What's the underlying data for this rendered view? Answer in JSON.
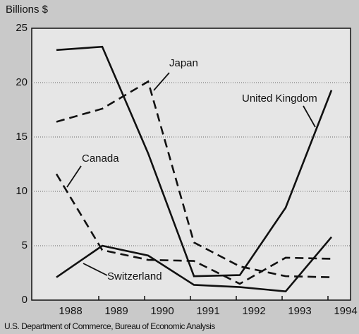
{
  "chart_data": {
    "type": "line",
    "ylabel": "Billions $",
    "source": "U.S. Department of Commerce, Bureau of Economic Analysis",
    "categories": [
      "1988",
      "1989",
      "1990",
      "1991",
      "1992",
      "1993",
      "1994"
    ],
    "series": [
      {
        "name": "United Kingdom",
        "color": "#111111",
        "dashed": false,
        "values": [
          23,
          23.3,
          13.5,
          2.2,
          2.3,
          8.5,
          19.3
        ]
      },
      {
        "name": "Japan",
        "color": "#111111",
        "dashed": true,
        "values": [
          16.4,
          17.6,
          20.1,
          5.3,
          3.1,
          2.2,
          2.1
        ]
      },
      {
        "name": "Canada",
        "color": "#111111",
        "dashed": true,
        "values": [
          11.6,
          4.6,
          3.7,
          3.6,
          1.5,
          3.9,
          3.8
        ]
      },
      {
        "name": "Switzerland",
        "color": "#111111",
        "dashed": false,
        "values": [
          2.1,
          5.0,
          4.1,
          1.4,
          1.2,
          0.8,
          5.8
        ]
      }
    ],
    "ylim": [
      0,
      25
    ],
    "yticks": [
      0,
      5,
      10,
      15,
      20,
      25
    ],
    "grid": true
  }
}
